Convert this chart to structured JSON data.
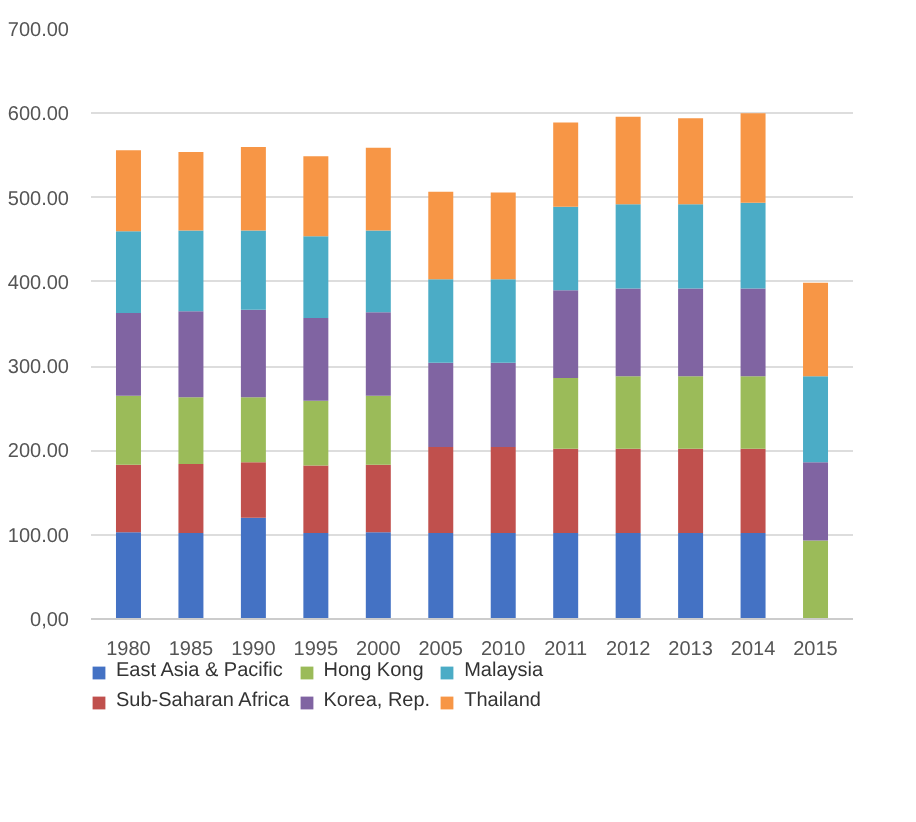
{
  "chart_data": {
    "type": "bar",
    "stacked": true,
    "categories": [
      "1980",
      "1985",
      "1990",
      "1995",
      "2000",
      "2005",
      "2010",
      "2011",
      "2012",
      "2013",
      "2014",
      "2015"
    ],
    "series": [
      {
        "name": "East Asia & Pacific",
        "color": "#4472c4",
        "values": [
          103,
          102,
          120,
          102,
          103,
          102,
          102,
          102,
          102,
          102,
          102,
          0
        ]
      },
      {
        "name": "Sub-Saharan Africa",
        "color": "#c0504d",
        "values": [
          80,
          82,
          66,
          80,
          80,
          102,
          102,
          100,
          100,
          100,
          100,
          0
        ]
      },
      {
        "name": "Hong Kong",
        "color": "#9bbb59",
        "values": [
          82,
          79,
          77,
          77,
          82,
          0,
          0,
          84,
          86,
          86,
          86,
          93
        ]
      },
      {
        "name": "Korea, Rep.",
        "color": "#8064a2",
        "values": [
          98,
          102,
          104,
          98,
          99,
          100,
          100,
          104,
          104,
          104,
          104,
          93
        ]
      },
      {
        "name": "Malaysia",
        "color": "#4bacc6",
        "values": [
          97,
          96,
          94,
          97,
          97,
          99,
          99,
          99,
          100,
          100,
          102,
          102
        ]
      },
      {
        "name": "Thailand",
        "color": "#f79646",
        "values": [
          96,
          93,
          99,
          95,
          98,
          104,
          103,
          100,
          104,
          102,
          106,
          111
        ]
      }
    ],
    "ylim": [
      0,
      700
    ],
    "yticks": [
      {
        "value": 0,
        "label": "0,00"
      },
      {
        "value": 100,
        "label": "100.00"
      },
      {
        "value": 200,
        "label": "200.00"
      },
      {
        "value": 300,
        "label": "300.00"
      },
      {
        "value": 400,
        "label": "400.00"
      },
      {
        "value": 500,
        "label": "500.00"
      },
      {
        "value": 600,
        "label": "600.00"
      },
      {
        "value": 700,
        "label": "700.00"
      }
    ],
    "grid": "y",
    "legend": "bottom"
  }
}
